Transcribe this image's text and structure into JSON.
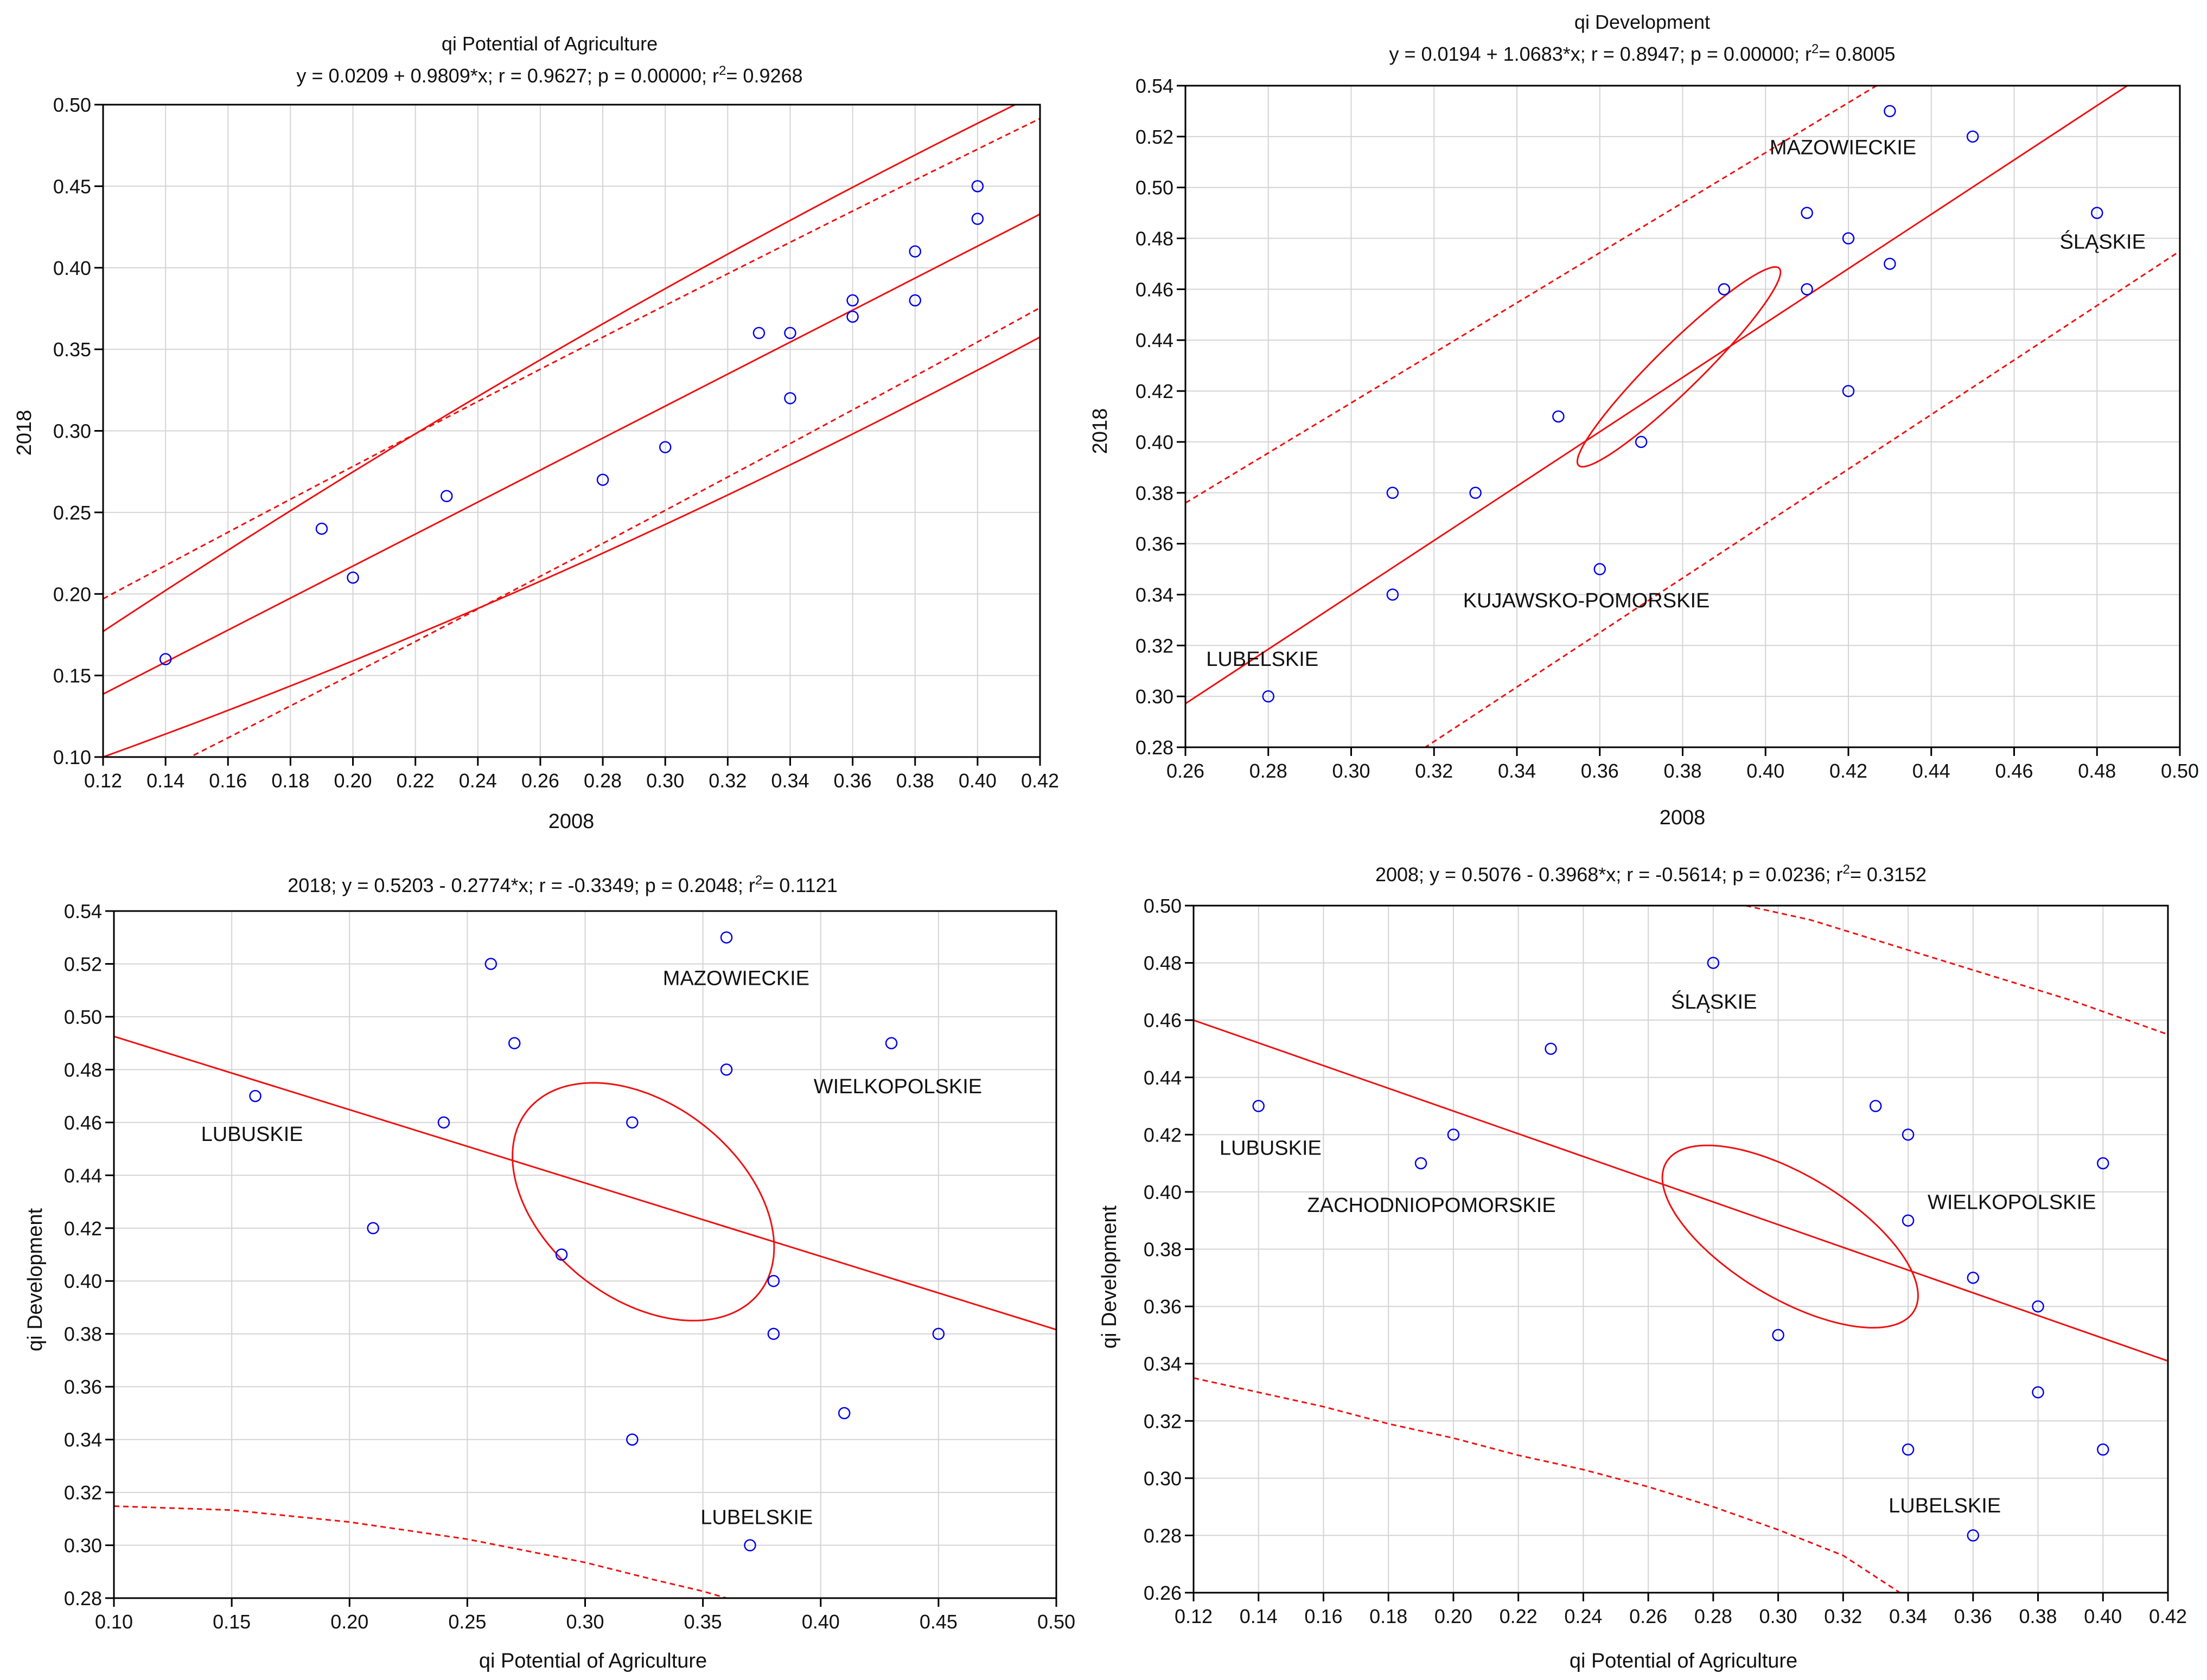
{
  "colors": {
    "line": "#ee1111",
    "point": "#0000ee",
    "grid": "#d4d4d4",
    "axis": "#000000"
  },
  "chart_data": [
    {
      "type": "scatter",
      "title": "qi Potential of Agriculture",
      "eq_text": "y = 0.0209 + 0.9809*x; r = 0.9627; p = 0.00000; r",
      "r2_text": "= 0.9268",
      "sup": "2",
      "xlabel": "2008",
      "ylabel": "2018",
      "xlim": [
        0.12,
        0.42
      ],
      "ylim": [
        0.1,
        0.5
      ],
      "xticks": [
        0.12,
        0.14,
        0.16,
        0.18,
        0.2,
        0.22,
        0.24,
        0.26,
        0.28,
        0.3,
        0.32,
        0.34,
        0.36,
        0.38,
        0.4,
        0.42
      ],
      "yticks": [
        0.1,
        0.15,
        0.2,
        0.25,
        0.3,
        0.35,
        0.4,
        0.45,
        0.5
      ],
      "xdec": 2,
      "ydec": 2,
      "intercept": 0.0209,
      "slope": 0.9809,
      "points": [
        [
          0.14,
          0.16
        ],
        [
          0.19,
          0.24
        ],
        [
          0.2,
          0.21
        ],
        [
          0.23,
          0.26
        ],
        [
          0.28,
          0.27
        ],
        [
          0.3,
          0.29
        ],
        [
          0.33,
          0.36
        ],
        [
          0.34,
          0.36
        ],
        [
          0.34,
          0.32
        ],
        [
          0.36,
          0.38
        ],
        [
          0.36,
          0.37
        ],
        [
          0.38,
          0.41
        ],
        [
          0.38,
          0.38
        ],
        [
          0.4,
          0.45
        ],
        [
          0.4,
          0.43
        ]
      ],
      "conf_band": {
        "at": [
          0.12,
          0.42
        ],
        "lower": [
          0.1,
          0.374
        ],
        "upper": [
          0.177,
          0.491
        ],
        "mid": 0.32,
        "bow": 0.022
      },
      "pred_band": {
        "at": [
          0.12,
          0.42
        ],
        "lower": [
          0.073,
          0.38
        ],
        "upper": [
          0.197,
          0.487
        ],
        "mid": 0.32,
        "bow": 0.006
      },
      "ellipse": null,
      "labels": []
    },
    {
      "type": "scatter",
      "title": "qi Development",
      "eq_text": "y = 0.0194 + 1.0683*x; r = 0.8947; p = 0.00000; r",
      "r2_text": "= 0.8005",
      "sup": "2",
      "xlabel": "2008",
      "ylabel": "2018",
      "xlim": [
        0.26,
        0.5
      ],
      "ylim": [
        0.28,
        0.54
      ],
      "xticks": [
        0.26,
        0.28,
        0.3,
        0.32,
        0.34,
        0.36,
        0.38,
        0.4,
        0.42,
        0.44,
        0.46,
        0.48,
        0.5
      ],
      "yticks": [
        0.28,
        0.3,
        0.32,
        0.34,
        0.36,
        0.38,
        0.4,
        0.42,
        0.44,
        0.46,
        0.48,
        0.5,
        0.52,
        0.54
      ],
      "xdec": 2,
      "ydec": 2,
      "intercept": 0.0194,
      "slope": 1.0683,
      "points": [
        [
          0.28,
          0.3
        ],
        [
          0.31,
          0.38
        ],
        [
          0.31,
          0.34
        ],
        [
          0.33,
          0.38
        ],
        [
          0.35,
          0.41
        ],
        [
          0.36,
          0.35
        ],
        [
          0.37,
          0.4
        ],
        [
          0.39,
          0.46
        ],
        [
          0.41,
          0.49
        ],
        [
          0.41,
          0.46
        ],
        [
          0.42,
          0.48
        ],
        [
          0.42,
          0.42
        ],
        [
          0.43,
          0.53
        ],
        [
          0.43,
          0.47
        ],
        [
          0.45,
          0.52
        ],
        [
          0.48,
          0.49
        ]
      ],
      "conf_band": null,
      "pred_band": {
        "at": [
          0.26,
          0.5
        ],
        "lower": [
          0.218,
          0.475
        ],
        "upper": [
          0.376,
          0.612
        ],
        "mid": 0.38,
        "bow": 0.0
      },
      "ellipse": {
        "cx": 0.3803,
        "cy": 0.4297,
        "center_shift_x": -0.0012,
        "center_shift_y": -0.0002,
        "angle_deg": -44.5,
        "ra": 0.2125,
        "rb": 0.0345
      },
      "labels": [
        {
          "text": "MAZOWIECKIE",
          "x": 0.401,
          "y": 0.513
        },
        {
          "text": "ŚLĄSKIE",
          "x": 0.471,
          "y": 0.476
        },
        {
          "text": "KUJAWSKO-POMORSKIE",
          "x": 0.327,
          "y": 0.335
        },
        {
          "text": "LUBELSKIE",
          "x": 0.265,
          "y": 0.312
        }
      ]
    },
    {
      "type": "scatter",
      "title": "2018; y = 0.5203 - 0.2774*x; r = -0.3349; p = 0.2048; r",
      "eq_text": "",
      "r2_text": "= 0.1121",
      "sup": "2",
      "xlabel": "qi Potential of Agriculture",
      "ylabel": "qi Development",
      "xlim": [
        0.1,
        0.5
      ],
      "ylim": [
        0.28,
        0.54
      ],
      "xticks": [
        0.1,
        0.15,
        0.2,
        0.25,
        0.3,
        0.35,
        0.4,
        0.45,
        0.5
      ],
      "yticks": [
        0.28,
        0.3,
        0.32,
        0.34,
        0.36,
        0.38,
        0.4,
        0.42,
        0.44,
        0.46,
        0.48,
        0.5,
        0.52,
        0.54
      ],
      "xdec": 2,
      "ydec": 2,
      "intercept": 0.5203,
      "slope": -0.2774,
      "points": [
        [
          0.16,
          0.47
        ],
        [
          0.21,
          0.42
        ],
        [
          0.24,
          0.46
        ],
        [
          0.26,
          0.52
        ],
        [
          0.27,
          0.49
        ],
        [
          0.29,
          0.41
        ],
        [
          0.32,
          0.46
        ],
        [
          0.32,
          0.34
        ],
        [
          0.36,
          0.53
        ],
        [
          0.36,
          0.48
        ],
        [
          0.37,
          0.3
        ],
        [
          0.38,
          0.4
        ],
        [
          0.38,
          0.38
        ],
        [
          0.41,
          0.35
        ],
        [
          0.43,
          0.49
        ],
        [
          0.45,
          0.38
        ]
      ],
      "conf_band": null,
      "pred_band": {
        "curve": [
          [
            0.1,
            0.3148
          ],
          [
            0.15,
            0.3133
          ],
          [
            0.2,
            0.3088
          ],
          [
            0.25,
            0.3023
          ],
          [
            0.3,
            0.2935
          ],
          [
            0.33,
            0.2868
          ],
          [
            0.35,
            0.2826
          ],
          [
            0.36,
            0.28
          ]
        ]
      },
      "ellipse": {
        "cx": 0.3247,
        "cy": 0.43,
        "center_shift_x": 0.0,
        "center_shift_y": 0.0,
        "angle_deg": 38.0,
        "ra": 0.2146,
        "rb": 0.1418
      },
      "labels": [
        {
          "text": "MAZOWIECKIE",
          "x": 0.333,
          "y": 0.512
        },
        {
          "text": "WIELKOPOLSKIE",
          "x": 0.397,
          "y": 0.471
        },
        {
          "text": "LUBUSKIE",
          "x": 0.137,
          "y": 0.453
        },
        {
          "text": "LUBELSKIE",
          "x": 0.349,
          "y": 0.308
        }
      ]
    },
    {
      "type": "scatter",
      "title": "2008; y = 0.5076 - 0.3968*x; r = -0.5614; p = 0.0236; r",
      "eq_text": "",
      "r2_text": "= 0.3152",
      "sup": "2",
      "xlabel": "qi Potential of Agriculture",
      "ylabel": "qi Development",
      "xlim": [
        0.12,
        0.42
      ],
      "ylim": [
        0.26,
        0.5
      ],
      "xticks": [
        0.12,
        0.14,
        0.16,
        0.18,
        0.2,
        0.22,
        0.24,
        0.26,
        0.28,
        0.3,
        0.32,
        0.34,
        0.36,
        0.38,
        0.4,
        0.42
      ],
      "yticks": [
        0.26,
        0.28,
        0.3,
        0.32,
        0.34,
        0.36,
        0.38,
        0.4,
        0.42,
        0.44,
        0.46,
        0.48,
        0.5
      ],
      "xdec": 2,
      "ydec": 2,
      "intercept": 0.5076,
      "slope": -0.3968,
      "points": [
        [
          0.14,
          0.43
        ],
        [
          0.19,
          0.41
        ],
        [
          0.2,
          0.42
        ],
        [
          0.23,
          0.45
        ],
        [
          0.28,
          0.48
        ],
        [
          0.3,
          0.35
        ],
        [
          0.33,
          0.43
        ],
        [
          0.34,
          0.42
        ],
        [
          0.34,
          0.39
        ],
        [
          0.34,
          0.31
        ],
        [
          0.36,
          0.37
        ],
        [
          0.36,
          0.28
        ],
        [
          0.38,
          0.36
        ],
        [
          0.38,
          0.33
        ],
        [
          0.4,
          0.41
        ],
        [
          0.4,
          0.31
        ]
      ],
      "conf_band": null,
      "pred_band": {
        "upper_curve": [
          [
            0.29,
            0.5
          ],
          [
            0.31,
            0.495
          ],
          [
            0.33,
            0.488
          ],
          [
            0.35,
            0.481
          ],
          [
            0.37,
            0.474
          ],
          [
            0.39,
            0.467
          ],
          [
            0.41,
            0.459
          ],
          [
            0.42,
            0.455
          ]
        ],
        "lower_curve": [
          [
            0.12,
            0.335
          ],
          [
            0.14,
            0.33
          ],
          [
            0.16,
            0.325
          ],
          [
            0.18,
            0.319
          ],
          [
            0.2,
            0.314
          ],
          [
            0.22,
            0.308
          ],
          [
            0.24,
            0.303
          ],
          [
            0.26,
            0.297
          ],
          [
            0.28,
            0.29
          ],
          [
            0.3,
            0.282
          ],
          [
            0.32,
            0.273
          ],
          [
            0.3375,
            0.26
          ]
        ]
      },
      "ellipse": {
        "cx": 0.3037,
        "cy": 0.3844,
        "center_shift_x": 0.0,
        "center_shift_y": 0.0,
        "angle_deg": 31.0,
        "ra": 0.2102,
        "rb": 0.0895
      },
      "labels": [
        {
          "text": "ŚLĄSKIE",
          "x": 0.267,
          "y": 0.464
        },
        {
          "text": "LUBUSKIE",
          "x": 0.128,
          "y": 0.413
        },
        {
          "text": "WIELKOPOLSKIE",
          "x": 0.346,
          "y": 0.394
        },
        {
          "text": "ZACHODNIOPOMORSKIE",
          "x": 0.155,
          "y": 0.393
        },
        {
          "text": "LUBELSKIE",
          "x": 0.334,
          "y": 0.288
        }
      ]
    }
  ]
}
